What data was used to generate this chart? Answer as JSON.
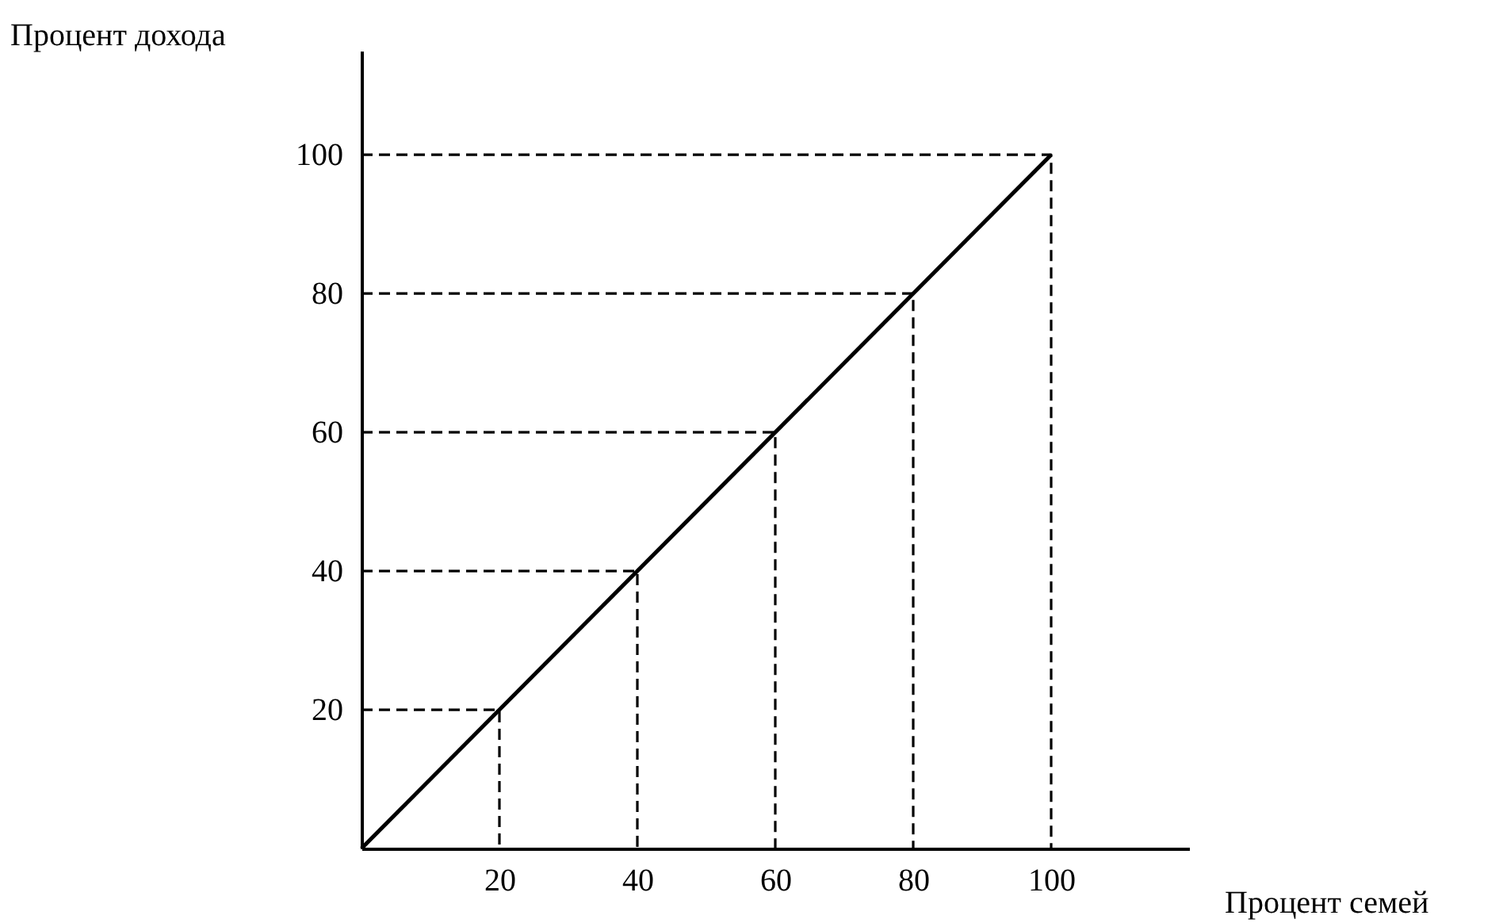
{
  "chart_data": {
    "type": "line",
    "xlabel": "Процент семей",
    "ylabel": "Процент дохода",
    "xlim": [
      0,
      120
    ],
    "ylim": [
      0,
      115
    ],
    "xticks": [
      20,
      40,
      60,
      80,
      100
    ],
    "yticks": [
      20,
      40,
      60,
      80,
      100
    ],
    "series": [
      {
        "type": "line",
        "color": "#000000",
        "line_style": "solid",
        "x": [
          0,
          100
        ],
        "values": [
          0,
          100
        ]
      },
      {
        "type": "line",
        "color": "#000000",
        "line_style": "dashed",
        "x": [
          0,
          20,
          20
        ],
        "values": [
          20,
          20,
          0
        ]
      },
      {
        "type": "line",
        "color": "#000000",
        "line_style": "dashed",
        "x": [
          0,
          40,
          40
        ],
        "values": [
          40,
          40,
          0
        ]
      },
      {
        "type": "line",
        "color": "#000000",
        "line_style": "dashed",
        "x": [
          0,
          60,
          60
        ],
        "values": [
          60,
          60,
          0
        ]
      },
      {
        "type": "line",
        "color": "#000000",
        "line_style": "dashed",
        "x": [
          0,
          80,
          80
        ],
        "values": [
          80,
          80,
          0
        ]
      },
      {
        "type": "line",
        "color": "#000000",
        "line_style": "dashed",
        "x": [
          0,
          100,
          100
        ],
        "values": [
          100,
          100,
          0
        ]
      }
    ]
  }
}
